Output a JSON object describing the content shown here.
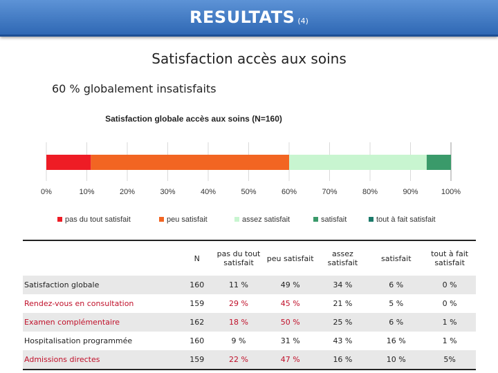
{
  "header": {
    "title": "RESULTATS",
    "index": "(4)"
  },
  "subtitle": "Satisfaction accès aux soins",
  "note": "60 % globalement insatisfaits",
  "chart_data": {
    "type": "bar",
    "orientation": "horizontal-stacked",
    "title": "Satisfaction globale accès aux soins (N=160)",
    "xlim": [
      0,
      100
    ],
    "x_ticks": [
      "0%",
      "10%",
      "20%",
      "30%",
      "40%",
      "50%",
      "60%",
      "70%",
      "80%",
      "90%",
      "100%"
    ],
    "legend_position": "bottom",
    "grid": true,
    "series": [
      {
        "name": "pas du tout satisfait",
        "value": 11,
        "color": "#ee1c25"
      },
      {
        "name": "peu satisfait",
        "value": 49,
        "color": "#f26522"
      },
      {
        "name": "assez satisfait",
        "value": 34,
        "color": "#c8f5d0"
      },
      {
        "name": "satisfait",
        "value": 6,
        "color": "#3a9a6a"
      },
      {
        "name": "tout à fait satisfait",
        "value": 0,
        "color": "#1c7a6a"
      }
    ]
  },
  "table": {
    "headers": [
      "",
      "N",
      "pas du tout satisfait",
      "peu satisfait",
      "assez satisfait",
      "satisfait",
      "tout à fait satisfait"
    ],
    "rows": [
      {
        "label": "Satisfaction globale",
        "red_label": false,
        "cells": [
          {
            "v": "160",
            "red": false
          },
          {
            "v": "11 %",
            "red": false
          },
          {
            "v": "49 %",
            "red": false
          },
          {
            "v": "34 %",
            "red": false
          },
          {
            "v": "6 %",
            "red": false
          },
          {
            "v": "0 %",
            "red": false
          }
        ]
      },
      {
        "label": "Rendez-vous en consultation",
        "red_label": true,
        "cells": [
          {
            "v": "159",
            "red": false
          },
          {
            "v": "29 %",
            "red": true
          },
          {
            "v": "45 %",
            "red": true
          },
          {
            "v": "21 %",
            "red": false
          },
          {
            "v": "5 %",
            "red": false
          },
          {
            "v": "0 %",
            "red": false
          }
        ]
      },
      {
        "label": "Examen complémentaire",
        "red_label": true,
        "cells": [
          {
            "v": "162",
            "red": false
          },
          {
            "v": "18 %",
            "red": true
          },
          {
            "v": "50 %",
            "red": true
          },
          {
            "v": "25 %",
            "red": false
          },
          {
            "v": "6 %",
            "red": false
          },
          {
            "v": "1 %",
            "red": false
          }
        ]
      },
      {
        "label": "Hospitalisation programmée",
        "red_label": false,
        "cells": [
          {
            "v": "160",
            "red": false
          },
          {
            "v": "9 %",
            "red": false
          },
          {
            "v": "31 %",
            "red": false
          },
          {
            "v": "43 %",
            "red": false
          },
          {
            "v": "16 %",
            "red": false
          },
          {
            "v": "1 %",
            "red": false
          }
        ]
      },
      {
        "label": "Admissions directes",
        "red_label": true,
        "cells": [
          {
            "v": "159",
            "red": false
          },
          {
            "v": "22 %",
            "red": true
          },
          {
            "v": "47 %",
            "red": true
          },
          {
            "v": "16 %",
            "red": false
          },
          {
            "v": "10 %",
            "red": false
          },
          {
            "v": "5%",
            "red": false
          }
        ]
      }
    ]
  }
}
